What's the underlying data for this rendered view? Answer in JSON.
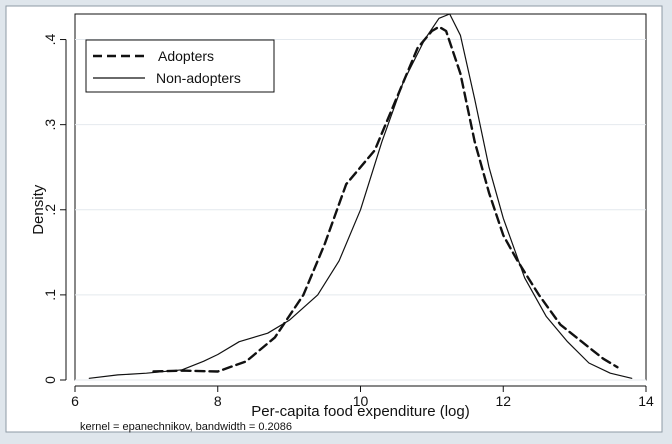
{
  "chart_data": {
    "type": "line",
    "title": "",
    "xlabel": "Per-capita food expenditure (log)",
    "ylabel": "Density",
    "note": "kernel = epanechnikov, bandwidth = 0.2086",
    "xlim": [
      6,
      14
    ],
    "ylim": [
      0,
      0.43
    ],
    "xticks": [
      6,
      8,
      10,
      12,
      14
    ],
    "xtick_labels": [
      "6",
      "8",
      "10",
      "12",
      "14"
    ],
    "yticks": [
      0,
      0.1,
      0.2,
      0.3,
      0.4
    ],
    "ytick_labels": [
      "0",
      ".1",
      ".2",
      ".3",
      ".4"
    ],
    "grid": true,
    "legend_position": "top-left",
    "colors": {
      "outer_background": "#dfe6ec",
      "plot_background": "#ffffff",
      "grid": "#e4e9ee",
      "line": "#111111"
    },
    "series": [
      {
        "name": "Adopters",
        "style": "dashed",
        "x": [
          7.1,
          7.5,
          8.0,
          8.4,
          8.8,
          9.2,
          9.5,
          9.8,
          10.0,
          10.2,
          10.5,
          10.8,
          11.0,
          11.1,
          11.2,
          11.4,
          11.6,
          11.8,
          12.0,
          12.2,
          12.5,
          12.8,
          13.1,
          13.4,
          13.6
        ],
        "y": [
          0.01,
          0.011,
          0.01,
          0.022,
          0.05,
          0.1,
          0.16,
          0.23,
          0.25,
          0.27,
          0.33,
          0.39,
          0.41,
          0.415,
          0.41,
          0.36,
          0.28,
          0.22,
          0.17,
          0.14,
          0.1,
          0.065,
          0.045,
          0.025,
          0.015
        ]
      },
      {
        "name": "Non-adopters",
        "style": "solid",
        "x": [
          6.2,
          6.6,
          7.0,
          7.5,
          7.8,
          8.0,
          8.3,
          8.7,
          9.0,
          9.4,
          9.7,
          10.0,
          10.3,
          10.6,
          10.9,
          11.1,
          11.25,
          11.4,
          11.6,
          11.8,
          12.0,
          12.3,
          12.6,
          12.9,
          13.2,
          13.5,
          13.8
        ],
        "y": [
          0.002,
          0.006,
          0.008,
          0.012,
          0.022,
          0.03,
          0.045,
          0.055,
          0.07,
          0.1,
          0.14,
          0.2,
          0.28,
          0.35,
          0.4,
          0.425,
          0.43,
          0.405,
          0.33,
          0.25,
          0.19,
          0.12,
          0.075,
          0.045,
          0.02,
          0.008,
          0.002
        ]
      }
    ]
  }
}
